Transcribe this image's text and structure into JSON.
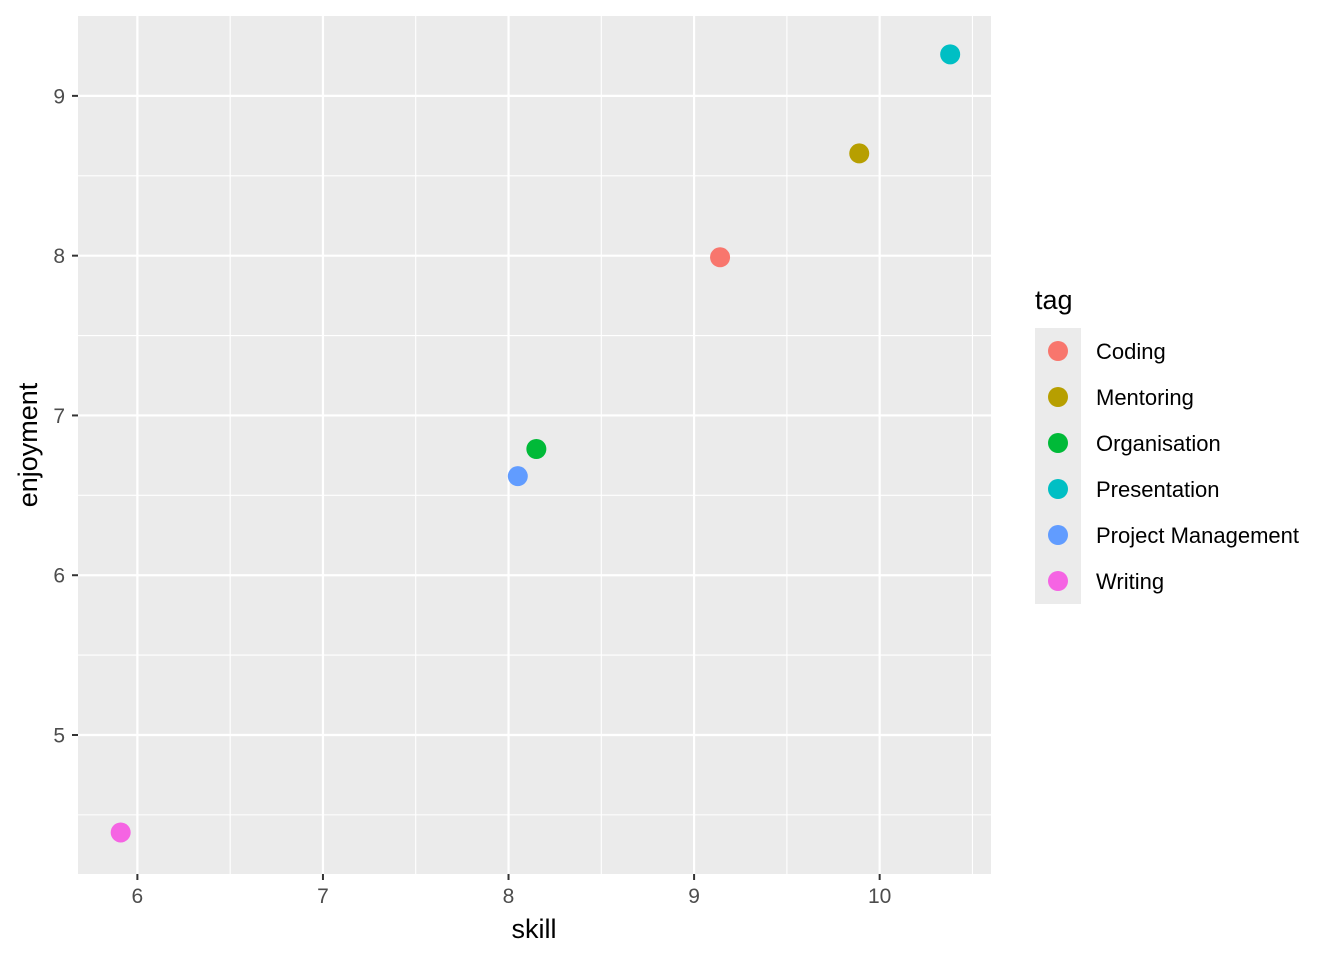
{
  "chart_data": {
    "type": "scatter",
    "xlabel": "skill",
    "ylabel": "enjoyment",
    "xlim": [
      5.68,
      10.6
    ],
    "ylim": [
      4.13,
      9.5
    ],
    "x_ticks": [
      6,
      7,
      8,
      9,
      10
    ],
    "y_ticks": [
      5,
      6,
      7,
      8,
      9
    ],
    "grid": true,
    "legend": {
      "title": "tag",
      "placement": "right"
    },
    "series": [
      {
        "name": "Coding",
        "color": "#F8766D",
        "x": [
          9.14
        ],
        "y": [
          7.99
        ]
      },
      {
        "name": "Mentoring",
        "color": "#B79F00",
        "x": [
          9.89
        ],
        "y": [
          8.64
        ]
      },
      {
        "name": "Organisation",
        "color": "#00BA38",
        "x": [
          8.15
        ],
        "y": [
          6.79
        ]
      },
      {
        "name": "Presentation",
        "color": "#00BFC4",
        "x": [
          10.38
        ],
        "y": [
          9.26
        ]
      },
      {
        "name": "Project Management",
        "color": "#619CFF",
        "x": [
          8.05
        ],
        "y": [
          6.62
        ]
      },
      {
        "name": "Writing",
        "color": "#F564E3",
        "x": [
          5.91
        ],
        "y": [
          4.39
        ]
      }
    ]
  }
}
